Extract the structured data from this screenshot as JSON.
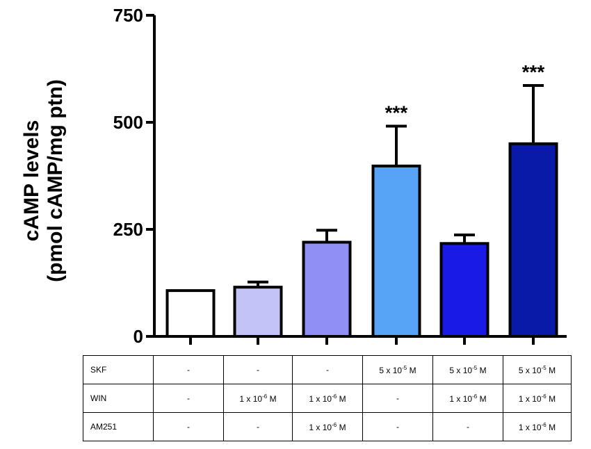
{
  "chart_data": {
    "type": "bar",
    "ylabel_line1": "cAMP levels",
    "ylabel_line2": "(pmol cAMP/mg ptn)",
    "ylim": [
      0,
      750
    ],
    "yticks": [
      "0",
      "250",
      "500",
      "750"
    ],
    "yticks_values": [
      0,
      250,
      500,
      750
    ],
    "bars": [
      {
        "value": 107,
        "error": 0,
        "color": "#ffffff",
        "sig": ""
      },
      {
        "value": 115,
        "error": 12,
        "color": "#c3c3f7",
        "sig": ""
      },
      {
        "value": 220,
        "error": 28,
        "color": "#8f8ff5",
        "sig": ""
      },
      {
        "value": 398,
        "error": 93,
        "color": "#57a3f5",
        "sig": "***"
      },
      {
        "value": 217,
        "error": 20,
        "color": "#1a1ae6",
        "sig": ""
      },
      {
        "value": 450,
        "error": 136,
        "color": "#0a1aa8",
        "sig": "***"
      }
    ]
  },
  "table": {
    "rows": [
      {
        "label": "SKF",
        "cells": [
          "-",
          "-",
          "-",
          "5 x 10|-5| M",
          "5 x 10|-5| M",
          "5 x 10|-5| M"
        ]
      },
      {
        "label": "WIN",
        "cells": [
          "-",
          "1 x 10|-6| M",
          "1 x 10|-6| M",
          "-",
          "1 x 10|-6| M",
          "1 x 10|-6| M"
        ]
      },
      {
        "label": "AM251",
        "cells": [
          "-",
          "-",
          "1 x 10|-6| M",
          "-",
          "-",
          "1 x 10|-6| M"
        ]
      }
    ]
  }
}
